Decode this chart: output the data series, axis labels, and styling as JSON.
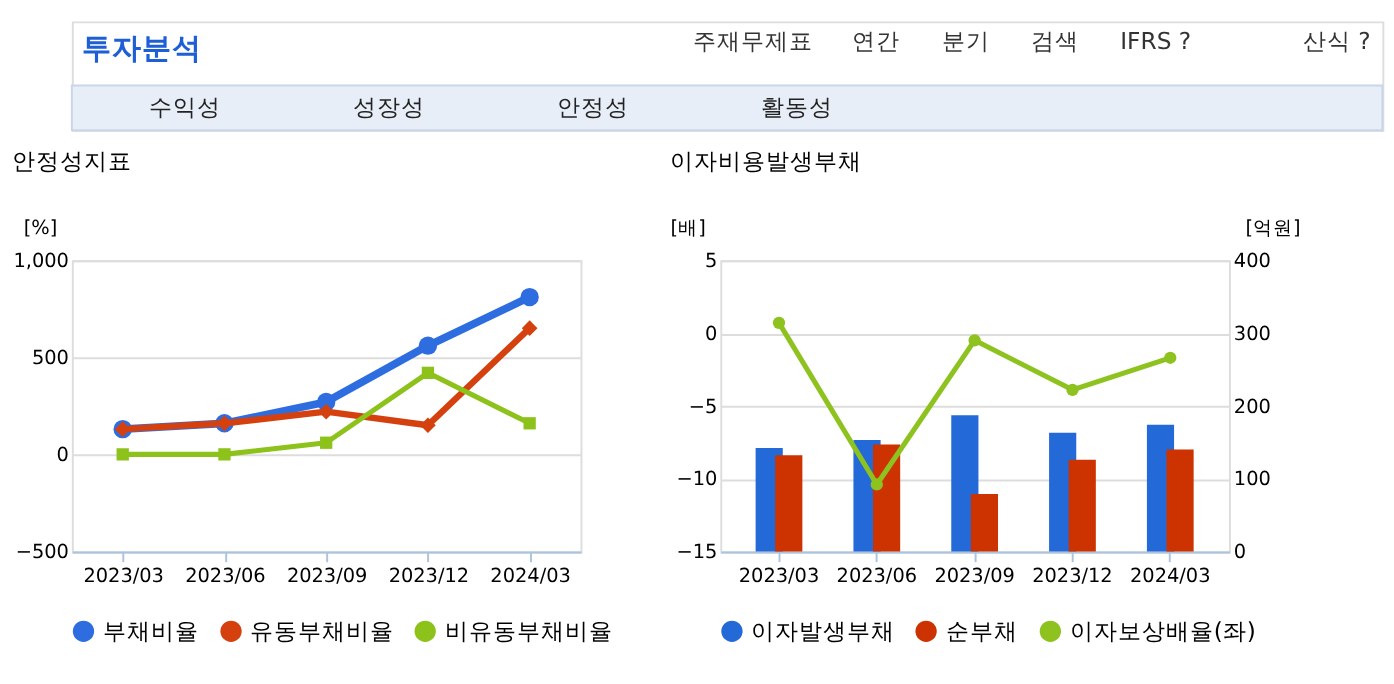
{
  "chart_data": [
    {
      "type": "other",
      "title": "투자분석",
      "annotations": [
        "주재무제표",
        "연간",
        "분기",
        "검색",
        "IFRS ?",
        "산식 ?",
        "수익성",
        "성장성",
        "안정성",
        "활동성"
      ]
    },
    {
      "type": "line",
      "title": "안정성지표",
      "ylabel": "[%]",
      "categories": [
        "2023/03",
        "2023/06",
        "2023/09",
        "2023/12",
        "2024/03"
      ],
      "ylim": [
        -500,
        1000
      ],
      "yticks": [
        -500,
        0,
        500,
        {
          "value": 1000,
          "label": "1,000"
        }
      ],
      "grid": "y",
      "legend": "bottom",
      "series": [
        {
          "name": "부채비율",
          "color": "#2d6de0",
          "marker": "circle",
          "values": [
            130,
            160,
            270,
            560,
            810
          ]
        },
        {
          "name": "유동부채비율",
          "color": "#d5400f",
          "marker": "diamond",
          "values": [
            130,
            160,
            220,
            150,
            650
          ]
        },
        {
          "name": "비유동부채비율",
          "color": "#8cc21a",
          "marker": "square",
          "values": [
            0,
            0,
            60,
            420,
            160
          ]
        }
      ]
    },
    {
      "type": "bar",
      "title": "이자비용발생부채",
      "ylabel": "[배]",
      "y2label": "[억원]",
      "categories": [
        "2023/03",
        "2023/06",
        "2023/09",
        "2023/12",
        "2024/03"
      ],
      "ylim": [
        -15,
        5
      ],
      "yticks": [
        -15,
        -10,
        -5,
        0,
        5
      ],
      "y2lim": [
        0,
        400
      ],
      "y2ticks": [
        0,
        100,
        200,
        300,
        400
      ],
      "grid": "y",
      "legend": "bottom",
      "series": [
        {
          "name": "이자발생부채",
          "color": "#2469d8",
          "axis": "y2",
          "values": [
            142,
            153,
            187,
            163,
            174
          ]
        },
        {
          "name": "순부채",
          "color": "#cc3300",
          "axis": "y2",
          "values": [
            132,
            147,
            79,
            126,
            140
          ]
        },
        {
          "name": "이자보상배율(좌)",
          "type": "line",
          "marker": "circle",
          "color": "#8dc21f",
          "axis": "y",
          "values": [
            0.7,
            -10.4,
            -0.5,
            -3.9,
            -1.7
          ]
        }
      ]
    }
  ]
}
